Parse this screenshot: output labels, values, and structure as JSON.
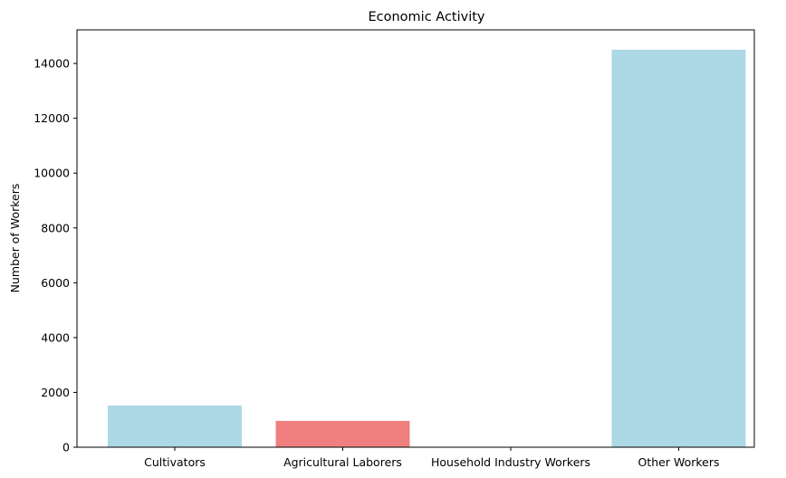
{
  "chart_data": {
    "type": "bar",
    "title": "Economic Activity",
    "xlabel": "",
    "ylabel": "Number of Workers",
    "categories": [
      "Cultivators",
      "Agricultural Laborers",
      "Household Industry Workers",
      "Other Workers"
    ],
    "values": [
      1520,
      960,
      10,
      14500
    ],
    "colors": [
      "#add8e6",
      "#f08080",
      "#add8e6",
      "#add8e6"
    ],
    "ylim": [
      0,
      15225
    ],
    "yticks": [
      0,
      2000,
      4000,
      6000,
      8000,
      10000,
      12000,
      14000
    ],
    "grid": false
  }
}
